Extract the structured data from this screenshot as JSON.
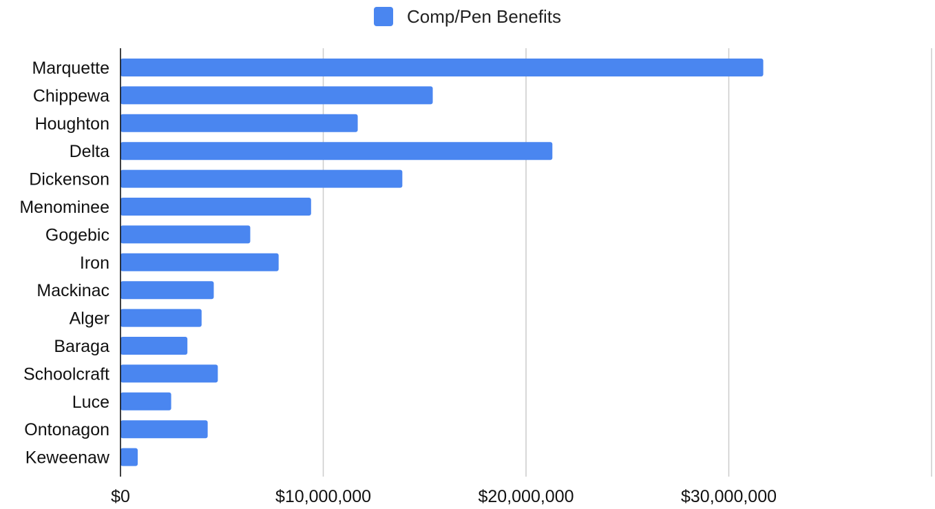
{
  "colors": {
    "bar": "#4a86f0",
    "grid": "#cccccc",
    "axis": "#000000",
    "text": "#111111"
  },
  "chart_data": {
    "type": "bar",
    "orientation": "horizontal",
    "categories": [
      "Marquette",
      "Chippewa",
      "Houghton",
      "Delta",
      "Dickenson",
      "Menominee",
      "Gogebic",
      "Iron",
      "Mackinac",
      "Alger",
      "Baraga",
      "Schoolcraft",
      "Luce",
      "Ontonagon",
      "Keweenaw"
    ],
    "series": [
      {
        "name": "Comp/Pen Benefits",
        "values": [
          31700000,
          15400000,
          11700000,
          21300000,
          13900000,
          9400000,
          6400000,
          7800000,
          4600000,
          4000000,
          3300000,
          4800000,
          2500000,
          4300000,
          850000
        ]
      }
    ],
    "xlim": [
      0,
      40000000
    ],
    "x_ticks": [
      0,
      10000000,
      20000000,
      30000000,
      40000000
    ],
    "x_tick_labels": [
      "$0",
      "$10,000,000",
      "$20,000,000",
      "$30,000,000",
      ""
    ],
    "grid": true,
    "legend": "top-center"
  }
}
